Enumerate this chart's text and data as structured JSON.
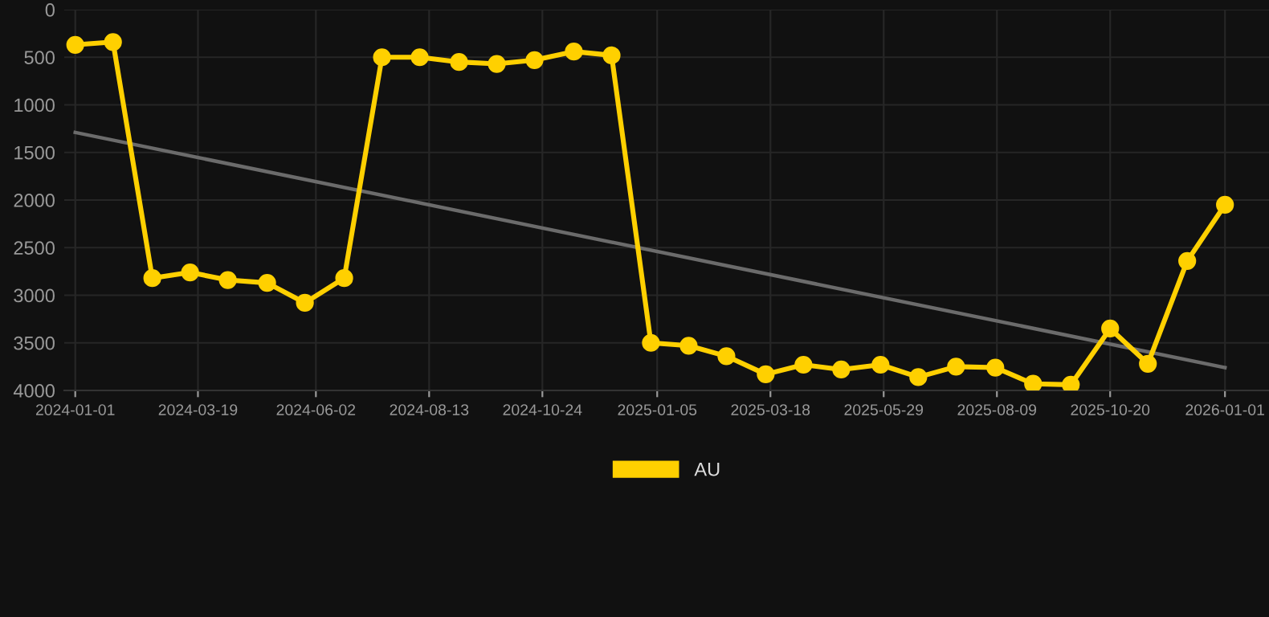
{
  "chart_data": {
    "type": "line",
    "x": [
      "2024-01-01",
      "2024-01-25",
      "2024-02-19",
      "2024-03-14",
      "2024-04-07",
      "2024-05-02",
      "2024-05-26",
      "2024-06-20",
      "2024-07-14",
      "2024-08-07",
      "2024-09-01",
      "2024-09-25",
      "2024-10-19",
      "2024-11-13",
      "2024-12-07",
      "2025-01-01",
      "2025-01-25",
      "2025-02-18",
      "2025-03-15",
      "2025-04-08",
      "2025-05-02",
      "2025-05-27",
      "2025-06-20",
      "2025-07-14",
      "2025-08-08",
      "2025-09-01",
      "2025-09-25",
      "2025-10-20",
      "2025-11-13",
      "2025-12-08",
      "2026-01-01"
    ],
    "series": [
      {
        "name": "AU",
        "color": "#ffd000",
        "marker": "circle",
        "values": [
          370,
          340,
          2820,
          2760,
          2840,
          2870,
          3080,
          2820,
          500,
          500,
          550,
          570,
          530,
          440,
          480,
          3500,
          3530,
          3640,
          3830,
          3730,
          3780,
          3730,
          3860,
          3750,
          3760,
          3930,
          3940,
          3350,
          3720,
          2640,
          2050
        ]
      },
      {
        "type": "line",
        "color": "#6b6b6b",
        "marker": "none",
        "x": [
          "2024-01-01",
          "2026-01-01"
        ],
        "values": [
          1290,
          3760
        ]
      }
    ],
    "ylim": [
      4000,
      0
    ],
    "yticks": [
      0,
      500,
      1000,
      1500,
      2000,
      2500,
      3000,
      3500,
      4000
    ],
    "xlim": [
      "2023-12-25",
      "2026-01-29"
    ],
    "xticks": [
      {
        "value": "2024-01-01",
        "label": "2024-01-01"
      },
      {
        "value": "2024-03-19",
        "label": "2024-03-19"
      },
      {
        "value": "2024-06-02",
        "label": "2024-06-02"
      },
      {
        "value": "2024-08-13",
        "label": "2024-08-13"
      },
      {
        "value": "2024-10-24",
        "label": "2024-10-24"
      },
      {
        "value": "2025-01-05",
        "label": "2025-01-05"
      },
      {
        "value": "2025-03-18",
        "label": "2025-03-18"
      },
      {
        "value": "2025-05-29",
        "label": "2025-05-29"
      },
      {
        "value": "2025-08-09",
        "label": "2025-08-09"
      },
      {
        "value": "2025-10-20",
        "label": "2025-10-20"
      },
      {
        "value": "2026-01-01",
        "label": "2026-01-01"
      }
    ],
    "grid": true,
    "legend": "bottom",
    "line_style": "solid"
  }
}
